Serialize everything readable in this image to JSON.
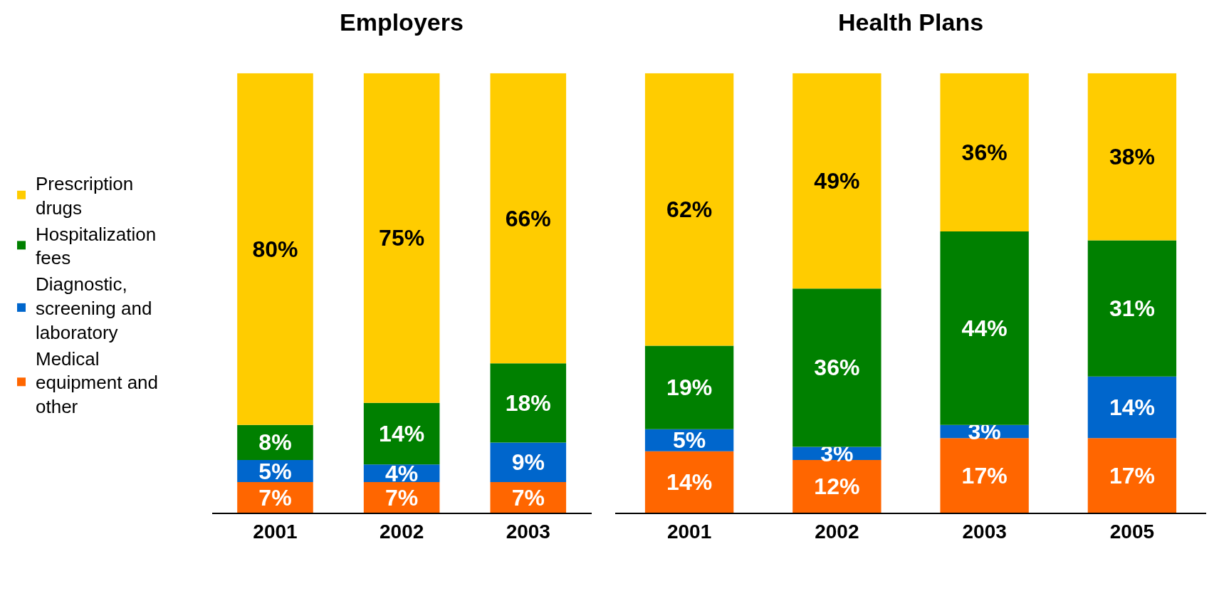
{
  "chart_data": [
    {
      "type": "bar",
      "title": "Employers",
      "categories": [
        "2001",
        "2002",
        "2003"
      ],
      "stacked": true,
      "legend": "left",
      "series": [
        {
          "name": "Medical equipment and other",
          "color": "#ff6600",
          "values": [
            7,
            7,
            7
          ],
          "value_labels": [
            "7%",
            "7%",
            "7%"
          ]
        },
        {
          "name": "Diagnostic, screening and laboratory",
          "color": "#0066cc",
          "values": [
            5,
            4,
            9
          ],
          "value_labels": [
            "5%",
            "4%",
            "9%"
          ]
        },
        {
          "name": "Hospitalization fees",
          "color": "#008000",
          "values": [
            8,
            14,
            18
          ],
          "value_labels": [
            "8%",
            "14%",
            "18%"
          ]
        },
        {
          "name": "Prescription drugs",
          "color": "#ffcc00",
          "values": [
            80,
            75,
            66
          ],
          "value_labels": [
            "80%",
            "75%",
            "66%"
          ]
        }
      ]
    },
    {
      "type": "bar",
      "title": "Health Plans",
      "categories": [
        "2001",
        "2002",
        "2003",
        "2005"
      ],
      "stacked": true,
      "series": [
        {
          "color": "#ff6600",
          "values": [
            14,
            12,
            17,
            17
          ],
          "value_labels": [
            "14%",
            "12%",
            "17%",
            "17%"
          ]
        },
        {
          "color": "#0066cc",
          "values": [
            5,
            3,
            3,
            14
          ],
          "value_labels": [
            "5%",
            "3%",
            "3%",
            "14%"
          ]
        },
        {
          "color": "#008000",
          "values": [
            19,
            36,
            44,
            31
          ],
          "value_labels": [
            "19%",
            "36%",
            "44%",
            "31%"
          ]
        },
        {
          "color": "#ffcc00",
          "values": [
            62,
            49,
            36,
            38
          ],
          "value_labels": [
            "62%",
            "49%",
            "36%",
            "38%"
          ]
        }
      ]
    }
  ]
}
